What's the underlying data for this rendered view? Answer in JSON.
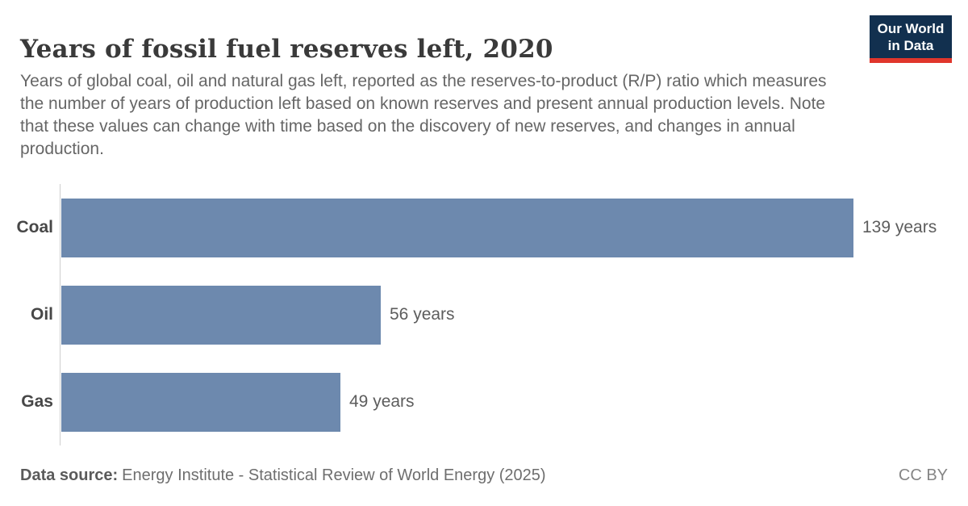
{
  "header": {
    "title": "Years of fossil fuel reserves left, 2020",
    "subtitle_lines": [
      "Years of global coal, oil and natural gas left, reported as the reserves-to-product (R/P) ratio which measures",
      "the number of years of production left based on known reserves and present annual production levels. Note",
      "that these values can change with time based on the discovery of new reserves, and changes in annual",
      "production."
    ],
    "logo": {
      "line1": "Our World",
      "line2": "in Data",
      "bg_color": "#12304f",
      "accent_color": "#e0362c"
    }
  },
  "chart_data": {
    "type": "bar",
    "orientation": "horizontal",
    "title": "Years of fossil fuel reserves left, 2020",
    "categories": [
      "Coal",
      "Oil",
      "Gas"
    ],
    "values": [
      139,
      56,
      49
    ],
    "value_labels": [
      "139 years",
      "56 years",
      "49 years"
    ],
    "unit": "years",
    "xlabel": "",
    "ylabel": "",
    "xlim": [
      0,
      139
    ],
    "grid": false,
    "legend": false,
    "bar_color": "#6d89ae"
  },
  "footer": {
    "source_label": "Data source:",
    "source_text": "Energy Institute - Statistical Review of World Energy (2025)",
    "license": "CC BY"
  }
}
